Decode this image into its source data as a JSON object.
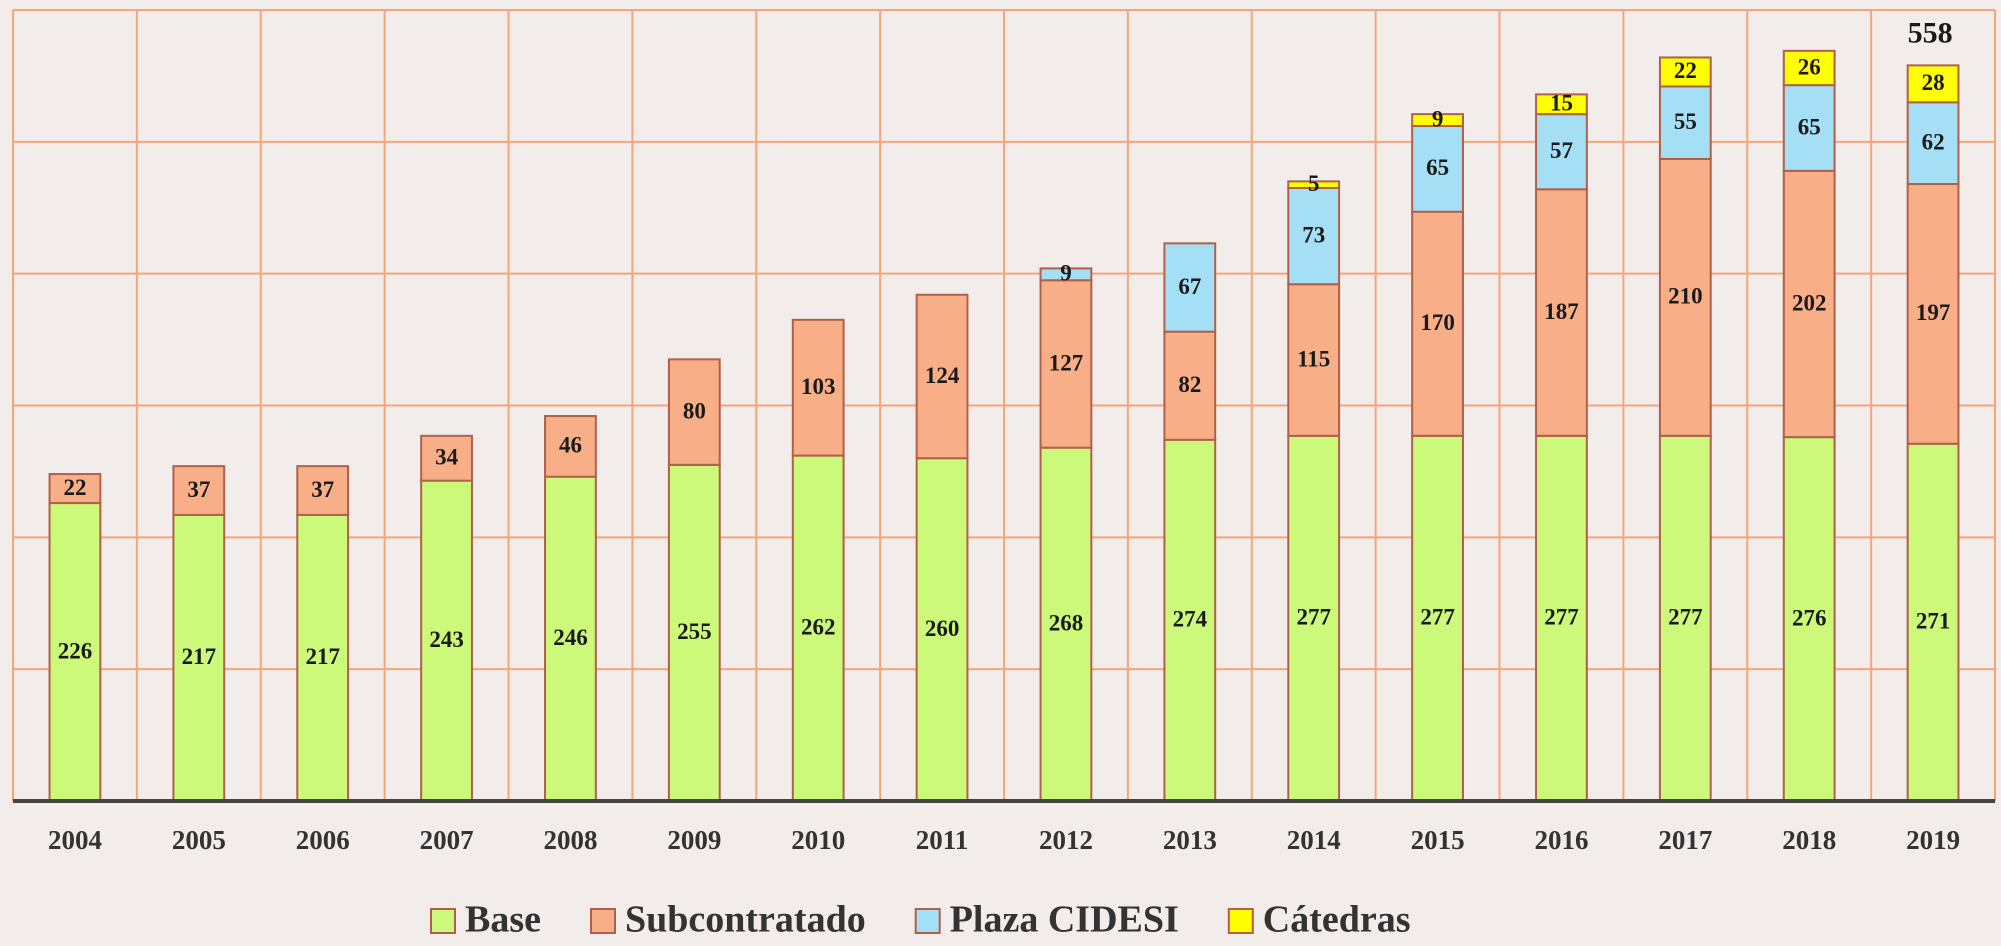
{
  "chart_data": {
    "type": "stacked_bar",
    "categories": [
      "2004",
      "2005",
      "2006",
      "2007",
      "2008",
      "2009",
      "2010",
      "2011",
      "2012",
      "2013",
      "2014",
      "2015",
      "2016",
      "2017",
      "2018",
      "2019"
    ],
    "series": [
      {
        "name": "Base",
        "color": "#ccf97a",
        "values": [
          226,
          217,
          217,
          243,
          246,
          255,
          262,
          260,
          268,
          274,
          277,
          277,
          277,
          277,
          276,
          271
        ]
      },
      {
        "name": "Subcontratado",
        "color": "#f8ae87",
        "values": [
          22,
          37,
          37,
          34,
          46,
          80,
          103,
          124,
          127,
          82,
          115,
          170,
          187,
          210,
          202,
          197
        ]
      },
      {
        "name": "Plaza CIDESI",
        "color": "#a5dff5",
        "values": [
          null,
          null,
          null,
          null,
          null,
          null,
          null,
          null,
          9,
          67,
          73,
          65,
          57,
          55,
          65,
          62
        ]
      },
      {
        "name": "Cátedras",
        "color": "#ffff00",
        "values": [
          null,
          null,
          null,
          null,
          null,
          null,
          null,
          null,
          null,
          null,
          5,
          9,
          15,
          22,
          26,
          28
        ]
      }
    ],
    "annotation": "558",
    "ylim": [
      0,
      600
    ],
    "yticks": [
      0,
      100,
      200,
      300,
      400,
      500,
      600
    ],
    "grid": true,
    "legend": "bottom"
  }
}
